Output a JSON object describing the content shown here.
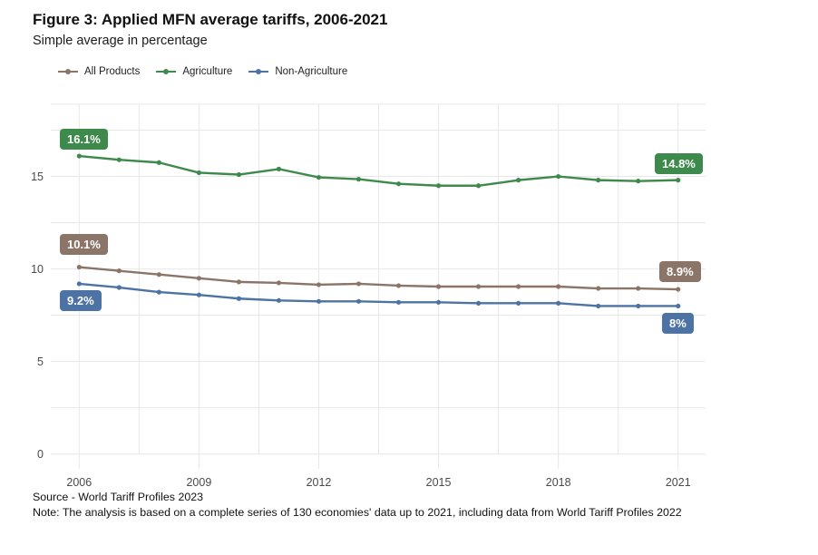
{
  "header": {
    "title": "Figure 3: Applied MFN average tariffs, 2006-2021",
    "subtitle": "Simple average in percentage"
  },
  "chart_data": {
    "type": "line",
    "title": "Figure 3: Applied MFN average tariffs, 2006-2021",
    "subtitle": "Simple average in percentage",
    "x": [
      2006,
      2007,
      2008,
      2009,
      2010,
      2011,
      2012,
      2013,
      2014,
      2015,
      2016,
      2017,
      2018,
      2019,
      2020,
      2021
    ],
    "series": [
      {
        "name": "All Products",
        "color": "#8b7569",
        "values": [
          10.1,
          9.9,
          9.7,
          9.5,
          9.3,
          9.25,
          9.15,
          9.2,
          9.1,
          9.05,
          9.05,
          9.05,
          9.05,
          8.95,
          8.95,
          8.9
        ]
      },
      {
        "name": "Agriculture",
        "color": "#3d8a4c",
        "values": [
          16.1,
          15.9,
          15.75,
          15.2,
          15.1,
          15.4,
          14.95,
          14.85,
          14.6,
          14.5,
          14.5,
          14.8,
          15.0,
          14.8,
          14.75,
          14.8
        ]
      },
      {
        "name": "Non-Agriculture",
        "color": "#4d73a4",
        "values": [
          9.2,
          9.0,
          8.75,
          8.6,
          8.4,
          8.3,
          8.25,
          8.25,
          8.2,
          8.2,
          8.15,
          8.15,
          8.15,
          8.0,
          8.0,
          8.0
        ]
      }
    ],
    "x_ticks": [
      2006,
      2009,
      2012,
      2015,
      2018,
      2021
    ],
    "x_minor_gridlines": [
      2007.5,
      2010.5,
      2013.5,
      2016.5,
      2019.5
    ],
    "y_ticks": [
      0,
      5,
      10,
      15
    ],
    "y_gridlines": [
      0,
      2.5,
      5,
      7.5,
      10,
      12.5,
      15,
      17.5
    ],
    "ylim": [
      0,
      18.9
    ],
    "grid": true,
    "legend_position": "top",
    "point_labels": [
      {
        "series_index": 1,
        "position": "start",
        "text": "16.1%"
      },
      {
        "series_index": 0,
        "position": "start",
        "text": "10.1%"
      },
      {
        "series_index": 2,
        "position": "start",
        "text": "9.2%"
      },
      {
        "series_index": 1,
        "position": "end",
        "text": "14.8%"
      },
      {
        "series_index": 0,
        "position": "end",
        "text": "8.9%"
      },
      {
        "series_index": 2,
        "position": "end",
        "text": "8%"
      }
    ],
    "axis_text_color": "#4a4a4a",
    "gridline_color": "#e7e7e7"
  },
  "footer": {
    "source": "Source - World Tariff Profiles 2023",
    "note": "Note: The analysis is based on a complete series of 130 economies' data up to 2021, including data from World Tariff Profiles 2022"
  }
}
